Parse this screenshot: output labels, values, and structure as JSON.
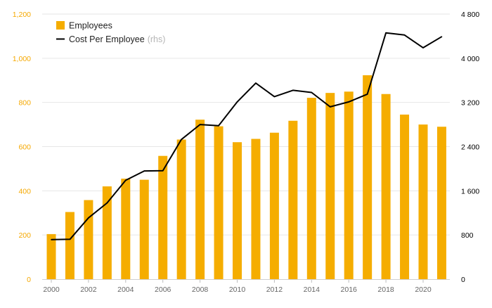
{
  "chart_data": {
    "type": "bar",
    "title": "",
    "xlabel": "",
    "ylabel": "",
    "categories": [
      2000,
      2001,
      2002,
      2003,
      2004,
      2005,
      2006,
      2007,
      2008,
      2009,
      2010,
      2011,
      2012,
      2013,
      2014,
      2015,
      2016,
      2017,
      2018,
      2019,
      2020,
      2021
    ],
    "x_tick_labels": [
      "2000",
      "2002",
      "2004",
      "2006",
      "2008",
      "2010",
      "2012",
      "2014",
      "2016",
      "2018",
      "2020"
    ],
    "y_left": {
      "ylim": [
        0,
        1200
      ],
      "tick_labels": [
        "0",
        "200",
        "400",
        "600",
        "800",
        "1,000",
        "1,200"
      ],
      "color": "#f5a800"
    },
    "y_right": {
      "ylim": [
        0,
        4800
      ],
      "tick_labels": [
        "0",
        "800",
        "1 600",
        "2 400",
        "3 200",
        "4 000",
        "4 800"
      ],
      "color": "#000000"
    },
    "grid": true,
    "legend_position": "top-left",
    "series": [
      {
        "name": "Employees",
        "type": "bar",
        "axis": "left",
        "color": "#f5ad00",
        "values": [
          204,
          304,
          358,
          420,
          455,
          450,
          558,
          632,
          722,
          692,
          620,
          635,
          663,
          717,
          821,
          843,
          849,
          923,
          838,
          745,
          700,
          690
        ]
      },
      {
        "name": "Cost Per Employee",
        "name_suffix": "(rhs)",
        "type": "line",
        "axis": "right",
        "color": "#000000",
        "values": [
          715,
          722,
          1110,
          1380,
          1790,
          1960,
          1965,
          2530,
          2800,
          2780,
          3210,
          3550,
          3305,
          3420,
          3380,
          3120,
          3210,
          3350,
          4460,
          4420,
          4190,
          4390
        ]
      }
    ]
  }
}
